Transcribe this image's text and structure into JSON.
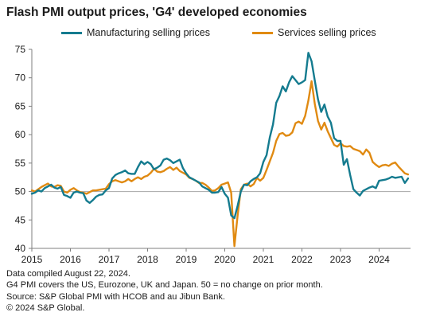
{
  "title": "Flash PMI output prices, 'G4' developed economies",
  "footnotes": [
    "Data compiled August 22, 2024.",
    "G4 PMI covers the US, Eurozone, UK and Japan. 50 = no change on prior month.",
    "Source: S&P Global PMI with HCOB and au Jibun Bank.",
    "© 2024 S&P Global."
  ],
  "colors": {
    "manufacturing": "#147b8f",
    "services": "#e08a12",
    "axis": "#7f7f7f",
    "text": "#1a1a1a"
  },
  "chart_data": {
    "type": "line",
    "title": "Flash PMI output prices, 'G4' developed economies",
    "xlabel": "",
    "ylabel": "",
    "x_start": "2015-01",
    "x_end": "2024-08",
    "x_ticks": [
      "2015",
      "2016",
      "2017",
      "2018",
      "2019",
      "2020",
      "2021",
      "2022",
      "2023",
      "2024"
    ],
    "ylim": [
      40,
      75
    ],
    "y_ticks": [
      40,
      45,
      50,
      55,
      60,
      65,
      70,
      75
    ],
    "reference_line": 50,
    "grid": false,
    "legend_position": "top",
    "series": [
      {
        "name": "Manufacturing selling prices",
        "color": "#147b8f",
        "values": [
          49.6,
          49.8,
          50.2,
          50.0,
          50.6,
          50.9,
          51.2,
          50.7,
          50.5,
          50.8,
          49.4,
          49.2,
          48.9,
          49.8,
          50.0,
          49.8,
          49.7,
          48.4,
          48.0,
          48.5,
          49.1,
          49.4,
          49.5,
          50.2,
          50.6,
          52.3,
          52.9,
          53.2,
          53.4,
          53.7,
          53.2,
          53.1,
          53.1,
          54.3,
          55.3,
          54.8,
          55.2,
          54.8,
          53.9,
          54.2,
          54.6,
          55.6,
          55.8,
          55.5,
          55.0,
          55.3,
          55.6,
          54.1,
          53.2,
          52.5,
          52.2,
          51.9,
          51.6,
          50.9,
          50.6,
          50.3,
          49.8,
          49.8,
          49.9,
          50.8,
          49.6,
          48.9,
          45.8,
          45.3,
          47.5,
          50.0,
          51.2,
          51.1,
          51.8,
          52.2,
          52.5,
          53.2,
          55.2,
          56.4,
          59.5,
          61.8,
          65.6,
          66.8,
          68.5,
          67.6,
          69.2,
          70.3,
          69.6,
          68.9,
          69.2,
          69.6,
          74.4,
          72.9,
          69.5,
          66.2,
          64.0,
          65.3,
          63.2,
          62.1,
          59.4,
          58.9,
          58.9,
          54.7,
          55.7,
          52.9,
          50.4,
          49.8,
          49.3,
          50.1,
          50.4,
          50.7,
          50.9,
          50.6,
          51.9,
          52.0,
          52.1,
          52.3,
          52.6,
          52.4,
          52.5,
          52.6,
          51.5,
          52.3
        ]
      },
      {
        "name": "Services selling prices",
        "color": "#e08a12",
        "values": [
          50.2,
          50.0,
          50.4,
          50.8,
          51.1,
          51.4,
          50.9,
          50.8,
          51.1,
          51.0,
          50.0,
          49.8,
          50.3,
          50.6,
          50.2,
          49.9,
          49.8,
          49.6,
          49.9,
          50.2,
          50.2,
          50.3,
          50.4,
          50.5,
          51.3,
          51.8,
          52.0,
          51.8,
          51.6,
          51.8,
          52.2,
          51.8,
          52.2,
          52.5,
          52.2,
          52.6,
          52.8,
          53.3,
          54.0,
          53.5,
          53.4,
          53.6,
          54.0,
          54.3,
          53.8,
          54.2,
          53.6,
          53.3,
          53.0,
          52.4,
          52.2,
          51.9,
          51.5,
          51.5,
          51.2,
          50.7,
          50.1,
          50.2,
          50.6,
          51.2,
          51.4,
          51.6,
          49.8,
          40.4,
          45.8,
          50.4,
          51.2,
          51.4,
          50.9,
          51.3,
          52.4,
          51.9,
          52.4,
          53.8,
          55.3,
          56.8,
          58.9,
          60.1,
          60.3,
          59.8,
          59.9,
          60.4,
          62.0,
          62.3,
          61.9,
          63.3,
          66.0,
          69.4,
          65.4,
          62.4,
          60.9,
          62.1,
          60.6,
          59.4,
          58.2,
          57.9,
          58.5,
          58.0,
          57.9,
          58.0,
          57.5,
          57.3,
          57.1,
          56.5,
          57.4,
          56.8,
          55.2,
          54.7,
          54.3,
          54.6,
          54.7,
          54.5,
          54.9,
          55.1,
          54.4,
          53.8,
          53.2,
          53.0
        ]
      }
    ]
  }
}
